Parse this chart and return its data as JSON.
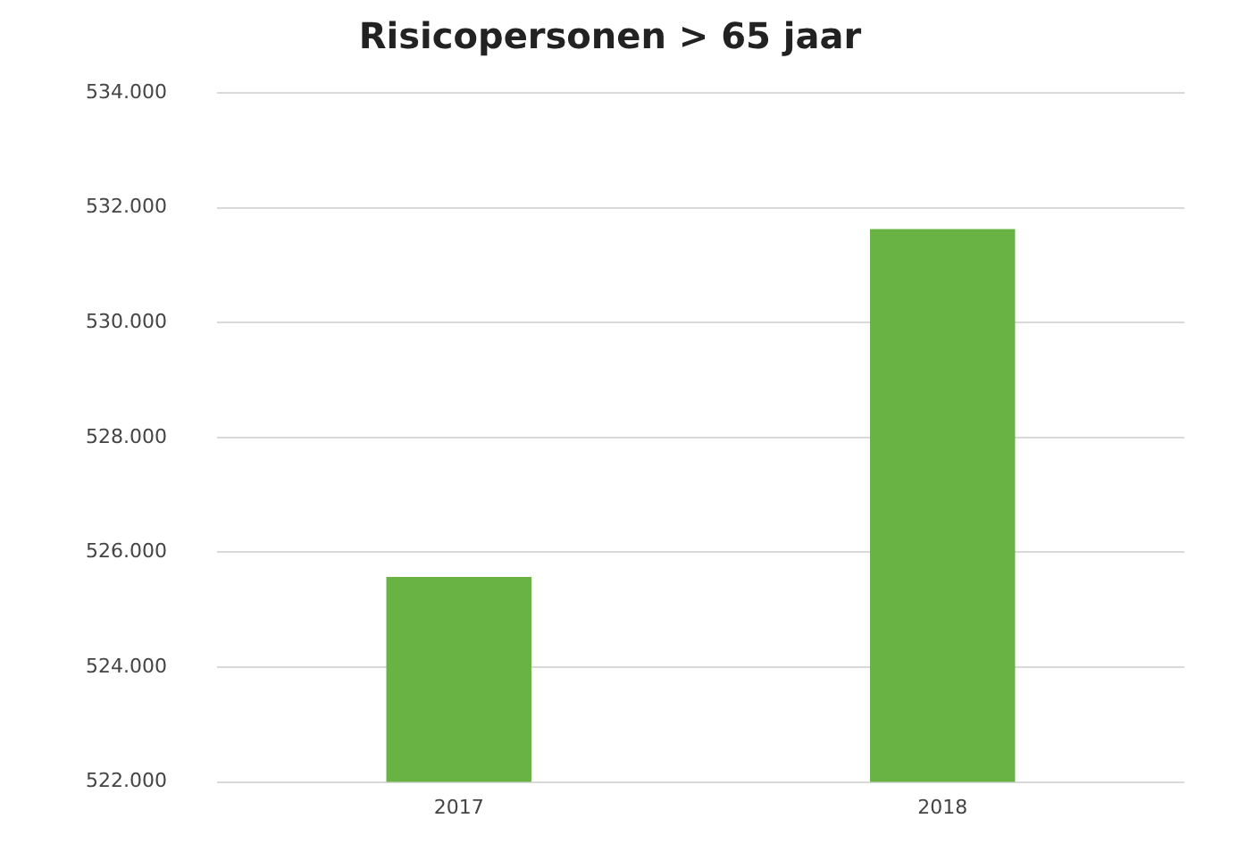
{
  "chart_data": {
    "type": "bar",
    "title": "Risicopersonen > 65 jaar",
    "categories": [
      "2017",
      "2018"
    ],
    "values": [
      525570,
      531630
    ],
    "color": "#69b244",
    "ylim": [
      522000,
      534000
    ],
    "yticks": [
      {
        "value": 522000,
        "label": "522.000"
      },
      {
        "value": 524000,
        "label": "524.000"
      },
      {
        "value": 526000,
        "label": "526.000"
      },
      {
        "value": 528000,
        "label": "528.000"
      },
      {
        "value": 530000,
        "label": "530.000"
      },
      {
        "value": 532000,
        "label": "532.000"
      },
      {
        "value": 534000,
        "label": "534.000"
      }
    ],
    "grid": "y"
  }
}
